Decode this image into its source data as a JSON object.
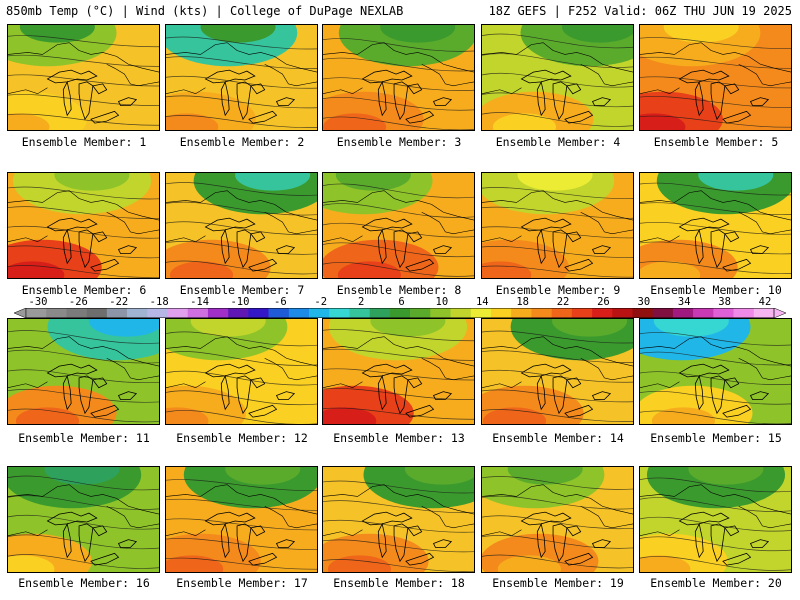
{
  "header": {
    "left": "850mb Temp (°C) | Wind (kts) | College of DuPage NEXLAB",
    "right": "18Z GEFS | F252 Valid: 06Z THU JUN 19 2025"
  },
  "colorbar": {
    "labels": [
      "-30",
      "-26",
      "-22",
      "-18",
      "-14",
      "-10",
      "-6",
      "-2",
      "2",
      "6",
      "10",
      "14",
      "18",
      "22",
      "26",
      "30",
      "34",
      "38",
      "42"
    ],
    "colors": [
      "#9a9a9a",
      "#8a8a8a",
      "#7b7b7b",
      "#6e6e6e",
      "#8c96a8",
      "#a0b4d2",
      "#b7b7e6",
      "#e0a0ee",
      "#d070e0",
      "#a030c8",
      "#6018b4",
      "#3418c8",
      "#1f5ad7",
      "#1d8ae6",
      "#21b6e8",
      "#36d6d2",
      "#36c49c",
      "#2ea25c",
      "#3b9a2e",
      "#5aab2c",
      "#8ec42a",
      "#c2d52c",
      "#ecec34",
      "#fad022",
      "#f7ac1e",
      "#f48a1c",
      "#ef661a",
      "#e84018",
      "#d81e18",
      "#b81212",
      "#901010",
      "#801040",
      "#a01a80",
      "#c83ab4",
      "#e060d8",
      "#f08ae8",
      "#f6b4f0"
    ]
  },
  "panels": [
    {
      "label": "Ensemble Member: 1",
      "base": "#f5c227",
      "blobs": [
        [
          "#8ec42a",
          "#3b9a2e"
        ],
        [
          "#fad022",
          "#f7ac1e"
        ]
      ]
    },
    {
      "label": "Ensemble Member: 2",
      "base": "#f5c227",
      "blobs": [
        [
          "#36c49c",
          "#3b9a2e"
        ],
        [
          "#f7ac1e",
          "#f48a1c"
        ]
      ]
    },
    {
      "label": "Ensemble Member: 3",
      "base": "#f7ac1e",
      "blobs": [
        [
          "#5aab2c",
          "#3b9a2e"
        ],
        [
          "#f48a1c",
          "#ef661a"
        ]
      ]
    },
    {
      "label": "Ensemble Member: 4",
      "base": "#c2d52c",
      "blobs": [
        [
          "#5aab2c",
          "#3b9a2e"
        ],
        [
          "#f7ac1e",
          "#fad022"
        ]
      ]
    },
    {
      "label": "Ensemble Member: 5",
      "base": "#f48a1c",
      "blobs": [
        [
          "#f7ac1e",
          "#fad022"
        ],
        [
          "#e84018",
          "#d81e18"
        ]
      ]
    },
    {
      "label": "Ensemble Member: 6",
      "base": "#f7ac1e",
      "blobs": [
        [
          "#c2d52c",
          "#8ec42a"
        ],
        [
          "#e84018",
          "#d81e18"
        ]
      ]
    },
    {
      "label": "Ensemble Member: 7",
      "base": "#f5c227",
      "blobs": [
        [
          "#3b9a2e",
          "#36c49c"
        ],
        [
          "#f48a1c",
          "#ef661a"
        ]
      ]
    },
    {
      "label": "Ensemble Member: 8",
      "base": "#f7ac1e",
      "blobs": [
        [
          "#8ec42a",
          "#5aab2c"
        ],
        [
          "#ef661a",
          "#e84018"
        ]
      ]
    },
    {
      "label": "Ensemble Member: 9",
      "base": "#f7ac1e",
      "blobs": [
        [
          "#c2d52c",
          "#ecec34"
        ],
        [
          "#f48a1c",
          "#ef661a"
        ]
      ]
    },
    {
      "label": "Ensemble Member: 10",
      "base": "#fad022",
      "blobs": [
        [
          "#3b9a2e",
          "#36c49c"
        ],
        [
          "#f48a1c",
          "#f7ac1e"
        ]
      ]
    },
    {
      "label": "Ensemble Member: 11",
      "base": "#8ec42a",
      "blobs": [
        [
          "#36c49c",
          "#21b6e8"
        ],
        [
          "#f48a1c",
          "#ef661a"
        ]
      ]
    },
    {
      "label": "Ensemble Member: 12",
      "base": "#fad022",
      "blobs": [
        [
          "#8ec42a",
          "#c2d52c"
        ],
        [
          "#f7ac1e",
          "#f48a1c"
        ]
      ]
    },
    {
      "label": "Ensemble Member: 13",
      "base": "#f7ac1e",
      "blobs": [
        [
          "#c2d52c",
          "#8ec42a"
        ],
        [
          "#e84018",
          "#d81e18"
        ]
      ]
    },
    {
      "label": "Ensemble Member: 14",
      "base": "#f5c227",
      "blobs": [
        [
          "#3b9a2e",
          "#5aab2c"
        ],
        [
          "#f48a1c",
          "#ef661a"
        ]
      ]
    },
    {
      "label": "Ensemble Member: 15",
      "base": "#8ec42a",
      "blobs": [
        [
          "#21b6e8",
          "#36d6d2"
        ],
        [
          "#fad022",
          "#f7ac1e"
        ]
      ]
    },
    {
      "label": "Ensemble Member: 16",
      "base": "#8ec42a",
      "blobs": [
        [
          "#3b9a2e",
          "#2ea25c"
        ],
        [
          "#f7ac1e",
          "#fad022"
        ]
      ]
    },
    {
      "label": "Ensemble Member: 17",
      "base": "#f7ac1e",
      "blobs": [
        [
          "#3b9a2e",
          "#5aab2c"
        ],
        [
          "#f48a1c",
          "#ef661a"
        ]
      ]
    },
    {
      "label": "Ensemble Member: 18",
      "base": "#f5c227",
      "blobs": [
        [
          "#3b9a2e",
          "#5aab2c"
        ],
        [
          "#f48a1c",
          "#ef661a"
        ]
      ]
    },
    {
      "label": "Ensemble Member: 19",
      "base": "#f5c227",
      "blobs": [
        [
          "#8ec42a",
          "#5aab2c"
        ],
        [
          "#f48a1c",
          "#f7ac1e"
        ]
      ]
    },
    {
      "label": "Ensemble Member: 20",
      "base": "#c2d52c",
      "blobs": [
        [
          "#3b9a2e",
          "#5aab2c"
        ],
        [
          "#fad022",
          "#f7ac1e"
        ]
      ]
    }
  ]
}
